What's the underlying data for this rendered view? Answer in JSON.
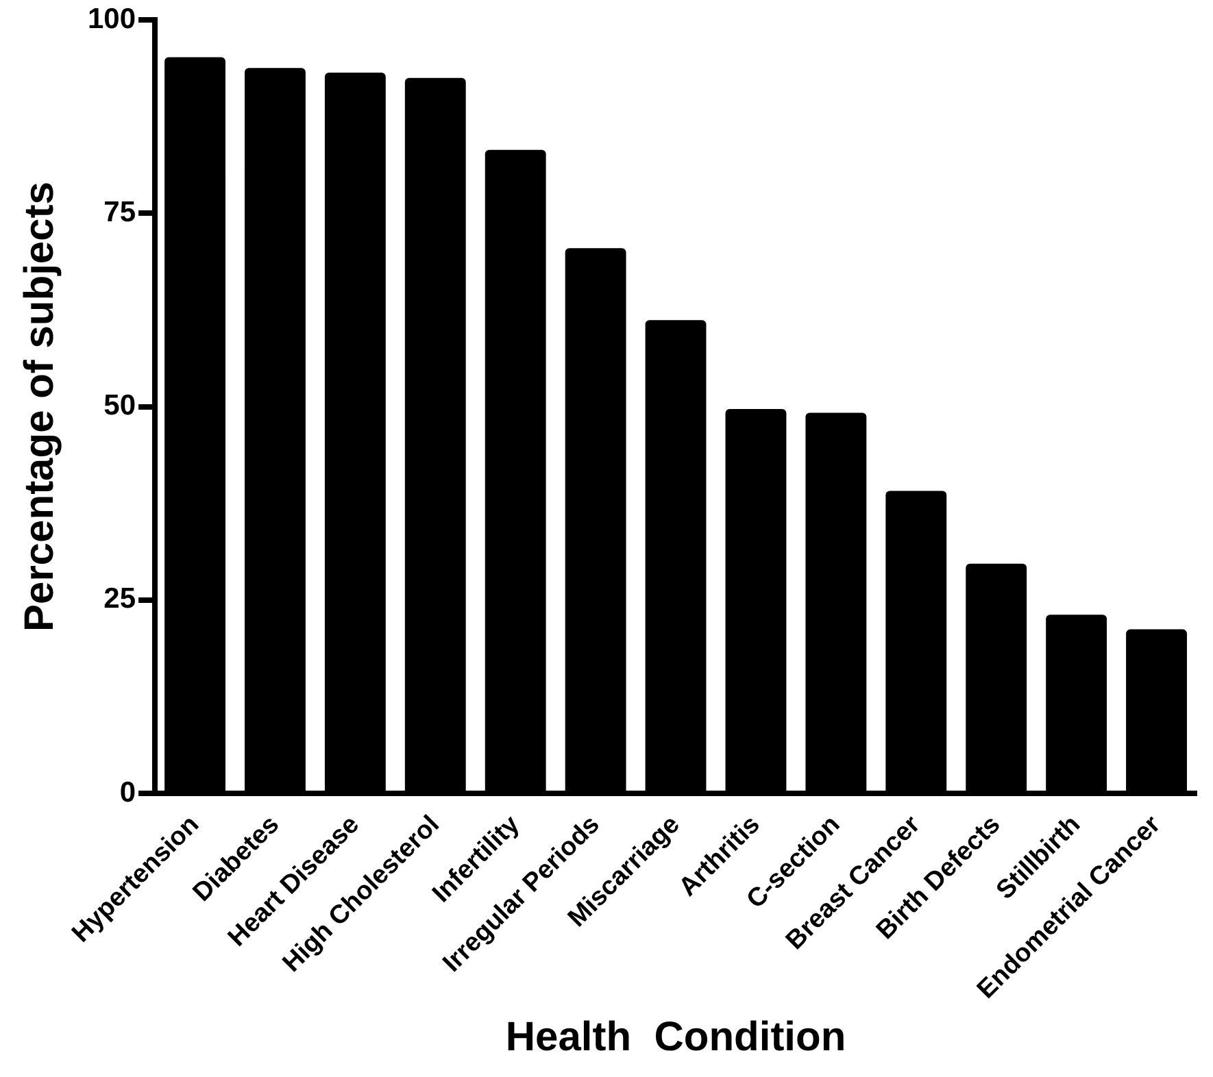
{
  "chart_data": {
    "type": "bar",
    "xlabel": "Health  Condition",
    "ylabel": "Percentage of subjects",
    "categories": [
      "Hypertension",
      "Diabetes",
      "Heart Disease",
      "High Cholesterol",
      "Infertility",
      "Irregular Periods",
      "Miscarriage",
      "Arthritis",
      "C-section",
      "Breast Cancer",
      "Birth Defects",
      "Stillbirth",
      "Endometrial Cancer"
    ],
    "values": [
      95.2,
      93.8,
      93.2,
      92.5,
      83.2,
      70.5,
      61.2,
      49.7,
      49.2,
      39.1,
      29.7,
      23.1,
      21.2
    ],
    "color": "#000000",
    "ylim": [
      0,
      100
    ],
    "yticks": [
      0,
      25,
      50,
      75,
      100
    ],
    "grid": false,
    "legend": false
  }
}
